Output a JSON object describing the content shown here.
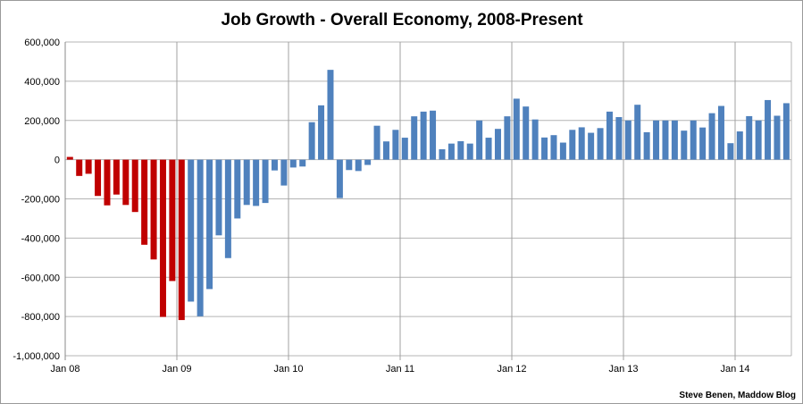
{
  "chart_data": {
    "type": "bar",
    "title": "Job Growth - Overall Economy, 2008-Present",
    "credit": "Steve Benen, Maddow Blog",
    "xlabel": "",
    "ylabel": "",
    "ylim": [
      -1000000,
      600000
    ],
    "y_ticks": [
      600000,
      400000,
      200000,
      0,
      -200000,
      -400000,
      -600000,
      -800000,
      -1000000
    ],
    "y_tick_labels": [
      "600,000",
      "400,000",
      "200,000",
      "0",
      "-200,000",
      "-400,000",
      "-600,000",
      "-800,000",
      "-1,000,000"
    ],
    "x_tick_labels": [
      "Jan 08",
      "Jan 09",
      "Jan 10",
      "Jan 11",
      "Jan 12",
      "Jan 13",
      "Jan 14"
    ],
    "start_month": "2008-01",
    "grid": true,
    "colors": {
      "red": "#c00000",
      "blue": "#4f81bd"
    },
    "red_bar_count": 13,
    "values": [
      14000,
      -83000,
      -72000,
      -185000,
      -233000,
      -178000,
      -231000,
      -267000,
      -434000,
      -509000,
      -802000,
      -619000,
      -818000,
      -724000,
      -799000,
      -660000,
      -386000,
      -502000,
      -300000,
      -231000,
      -236000,
      -221000,
      -55000,
      -132000,
      -40000,
      -35000,
      191000,
      277000,
      458000,
      -196000,
      -53000,
      -58000,
      -27000,
      173000,
      93000,
      152000,
      112000,
      221000,
      245000,
      250000,
      53000,
      82000,
      94000,
      82000,
      200000,
      112000,
      157000,
      221000,
      311000,
      271000,
      205000,
      113000,
      125000,
      87000,
      152000,
      165000,
      137000,
      161000,
      245000,
      217000,
      200000,
      280000,
      140000,
      200000,
      200000,
      200000,
      148000,
      200000,
      164000,
      237000,
      274000,
      84000,
      144000,
      222000,
      200000,
      304000,
      224000,
      288000
    ]
  }
}
